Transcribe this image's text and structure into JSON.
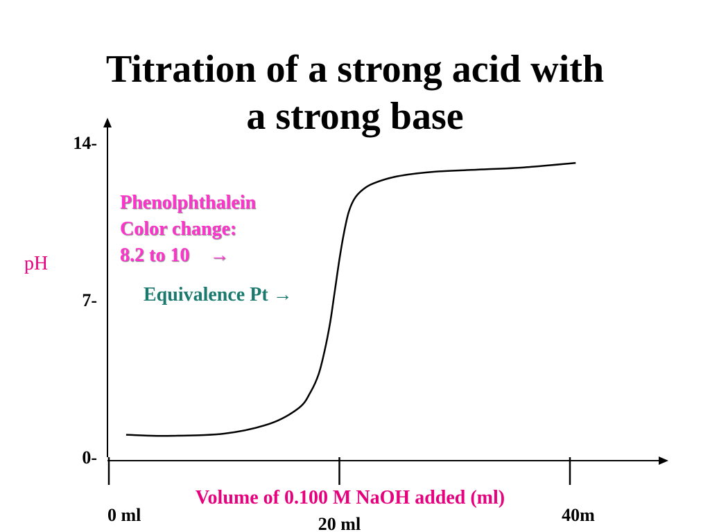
{
  "chart_data": {
    "type": "line",
    "title": "Titration of a strong acid with a strong base",
    "title_lines": [
      "Titration of a strong acid with",
      "a strong base"
    ],
    "ylabel": "pH",
    "xlabel": "Volume of 0.100 M NaOH added (ml)",
    "ylim": [
      0,
      14
    ],
    "xlim": [
      0,
      40
    ],
    "y_ticks": [
      {
        "value": 14,
        "label": "14-"
      },
      {
        "value": 7,
        "label": "7-"
      },
      {
        "value": 0,
        "label": "0-"
      }
    ],
    "x_ticks": [
      {
        "value": 0,
        "label": "0 ml"
      },
      {
        "value": 20,
        "label": "20 ml"
      },
      {
        "value": 40,
        "label": "40m"
      }
    ],
    "grid": false,
    "series": [
      {
        "x": [
          1.5,
          5,
          10,
          14,
          16.5,
          17.5,
          18.2,
          18.7,
          19.2,
          19.6,
          20,
          20.4,
          20.8,
          21.3,
          22,
          23,
          25,
          28,
          32,
          36,
          40.5
        ],
        "y": [
          1.0,
          0.95,
          1.05,
          1.5,
          2.2,
          2.9,
          3.7,
          4.7,
          6.0,
          7.4,
          8.8,
          10.0,
          10.9,
          11.5,
          11.9,
          12.2,
          12.5,
          12.7,
          12.8,
          12.9,
          13.1
        ]
      }
    ],
    "annotations": {
      "indicator_lines": [
        "Phenolphthalein",
        "Color change:",
        "8.2 to 10"
      ],
      "indicator_arrow": "→",
      "equivalence": "Equivalence Pt",
      "equivalence_arrow": "→"
    },
    "colors": {
      "indicator": "#ff33cc",
      "equivalence": "#1a7a6e",
      "axis_labels": "#e6007e",
      "line": "#000000"
    }
  }
}
